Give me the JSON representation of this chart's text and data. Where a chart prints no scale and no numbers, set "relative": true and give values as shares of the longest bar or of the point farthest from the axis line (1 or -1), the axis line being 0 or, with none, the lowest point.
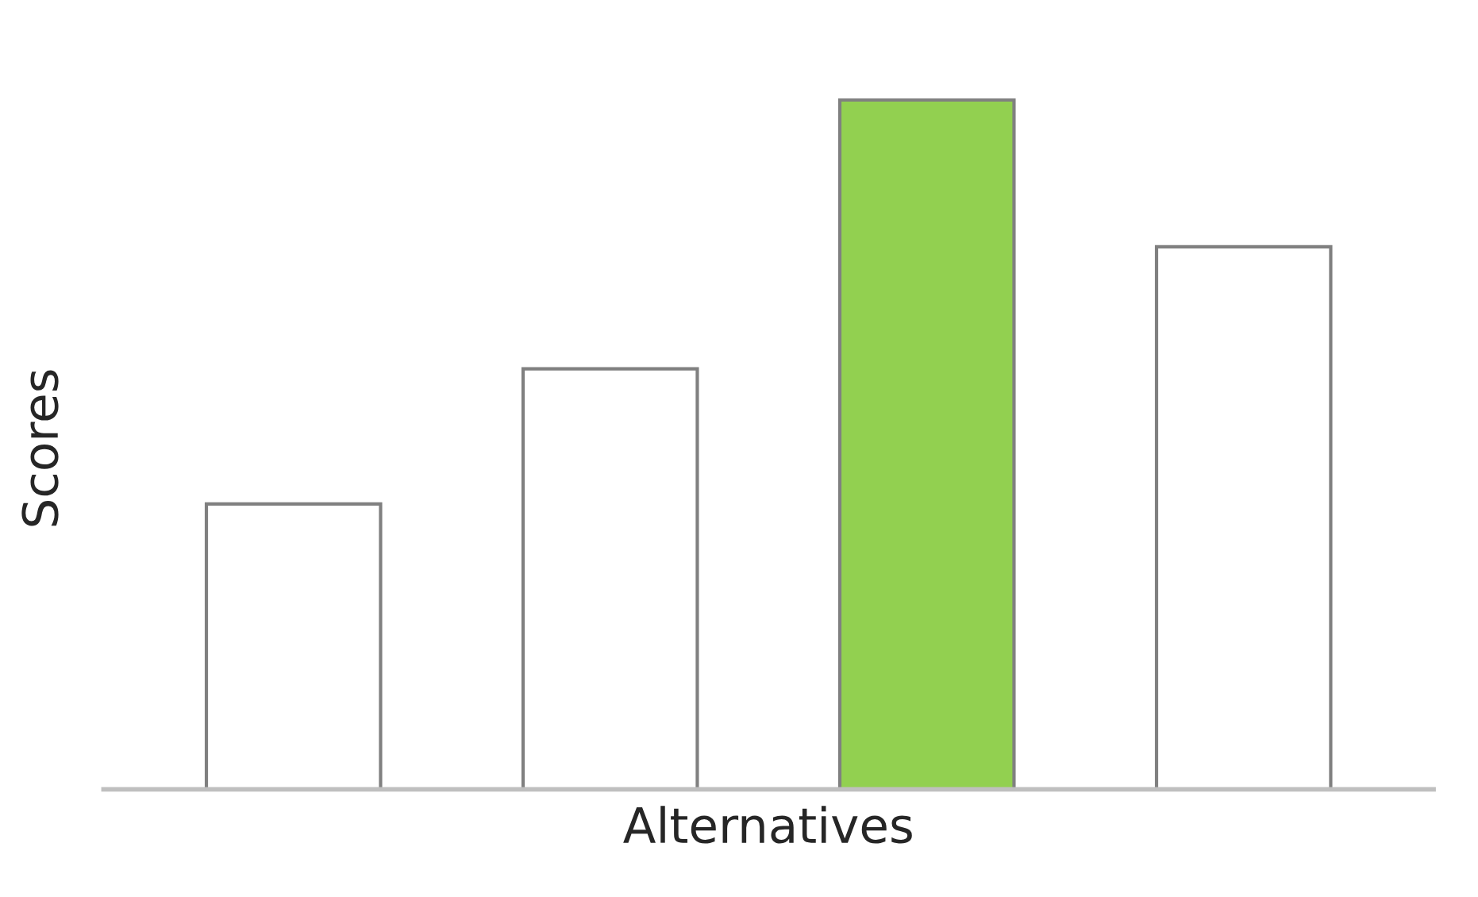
{
  "chart_data": {
    "type": "bar",
    "relative": true,
    "xlabel": "Alternatives",
    "ylabel": "Scores",
    "categories": [
      null,
      null,
      null,
      null
    ],
    "values": [
      0.414,
      0.61,
      1,
      0.787
    ],
    "colors": [
      "#ffffff",
      "#ffffff",
      "#92d050",
      "#ffffff"
    ],
    "grid": false,
    "legend": false
  }
}
